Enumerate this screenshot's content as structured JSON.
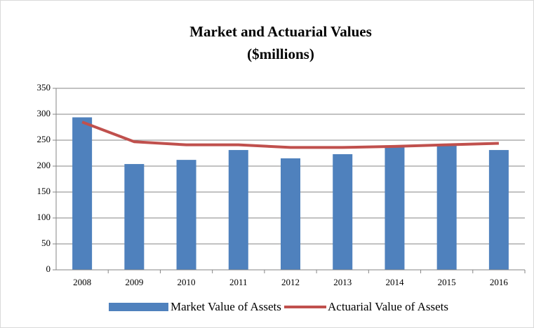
{
  "chart_data": {
    "type": "bar",
    "title": "Market and Actuarial Values",
    "subtitle": "($millions)",
    "categories": [
      "2008",
      "2009",
      "2010",
      "2011",
      "2012",
      "2013",
      "2014",
      "2015",
      "2016"
    ],
    "series": [
      {
        "name": "Market Value of Assets",
        "type": "bar",
        "color": "#4f81bd",
        "values": [
          294,
          204,
          212,
          231,
          215,
          223,
          240,
          240,
          231
        ]
      },
      {
        "name": "Actuarial Value of Assets",
        "type": "line",
        "color": "#c0504d",
        "values": [
          285,
          247,
          241,
          241,
          236,
          236,
          238,
          241,
          244
        ]
      }
    ],
    "ylim": [
      0,
      350
    ],
    "yticks": [
      0,
      50,
      100,
      150,
      200,
      250,
      300,
      350
    ],
    "grid": true,
    "legend": "bottom"
  }
}
